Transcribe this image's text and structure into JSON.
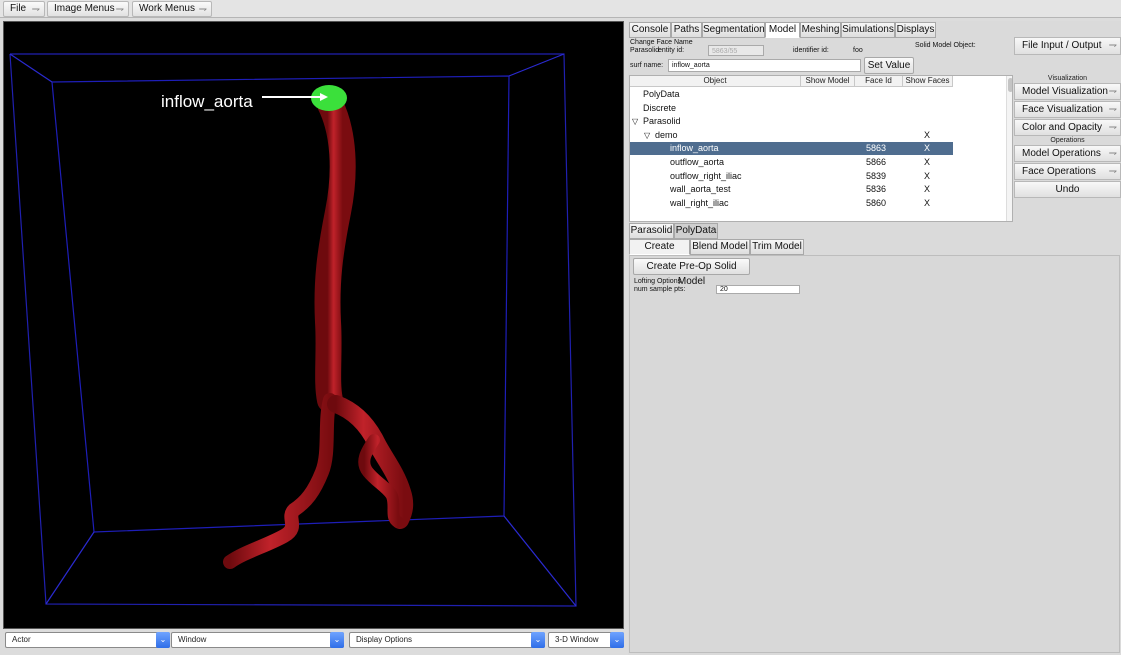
{
  "menubar": {
    "items": [
      {
        "label": "File"
      },
      {
        "label": "Image Menus"
      },
      {
        "label": "Work Menus"
      }
    ]
  },
  "viewport": {
    "annotation_label": "inflow_aorta",
    "background_color": "#000000",
    "vessel_color": "#b01a1f",
    "cap_color": "#33dd33",
    "box_color": "#2a2ad0"
  },
  "bottombar": {
    "actor": "Actor",
    "window": "Window",
    "display_options": "Display Options",
    "view_mode": "3-D Window"
  },
  "tabs": [
    "Console",
    "Paths",
    "Segmentation",
    "Model",
    "Meshing",
    "Simulations",
    "Displays"
  ],
  "active_tab": "Model",
  "face_form": {
    "change_face_name": "Change Face Name",
    "parasolid": "Parasolid",
    "entity_id_label": "entity id:",
    "entity_id_value": "5863/55",
    "identifier_label": "identifier id:",
    "identifier_value": "foo",
    "solid_model_object_label": "Solid Model Object:",
    "surf_name_label": "surf name:",
    "surf_name_value": "inflow_aorta",
    "set_value_button": "Set Value"
  },
  "tree": {
    "columns": [
      "Object",
      "Show Model",
      "Face Id",
      "Show Faces"
    ],
    "rows": [
      {
        "name": "PolyData",
        "face_id": "",
        "show_faces": "",
        "level": 0,
        "expander": ""
      },
      {
        "name": "Discrete",
        "face_id": "",
        "show_faces": "",
        "level": 0,
        "expander": ""
      },
      {
        "name": "Parasolid",
        "face_id": "",
        "show_faces": "",
        "level": 0,
        "expander": "▽"
      },
      {
        "name": "demo",
        "face_id": "",
        "show_faces": "X",
        "level": 1,
        "expander": "▽"
      },
      {
        "name": "inflow_aorta",
        "face_id": "5863",
        "show_faces": "X",
        "level": 2,
        "expander": "",
        "selected": true
      },
      {
        "name": "outflow_aorta",
        "face_id": "5866",
        "show_faces": "X",
        "level": 2,
        "expander": ""
      },
      {
        "name": "outflow_right_iliac",
        "face_id": "5839",
        "show_faces": "X",
        "level": 2,
        "expander": ""
      },
      {
        "name": "wall_aorta_test",
        "face_id": "5836",
        "show_faces": "X",
        "level": 2,
        "expander": ""
      },
      {
        "name": "wall_right_iliac",
        "face_id": "5860",
        "show_faces": "X",
        "level": 2,
        "expander": ""
      }
    ]
  },
  "right_menu": {
    "file_io": "File Input / Output",
    "visualization_header": "Visualization",
    "model_visualization": "Model Visualization",
    "face_visualization": "Face Visualization",
    "color_opacity": "Color and Opacity",
    "operations_header": "Operations",
    "model_operations": "Model Operations",
    "face_operations": "Face Operations",
    "undo": "Undo"
  },
  "lower_tabs": [
    "Parasolid",
    "PolyData"
  ],
  "sub_tabs": [
    "Create Model",
    "Blend Model",
    "Trim Model"
  ],
  "create_panel": {
    "create_preop_button": "Create Pre-Op Solid Model",
    "lofting_options_label": "Lofting Options",
    "num_sample_pts_label": "num sample pts:",
    "num_sample_pts_value": "20"
  }
}
